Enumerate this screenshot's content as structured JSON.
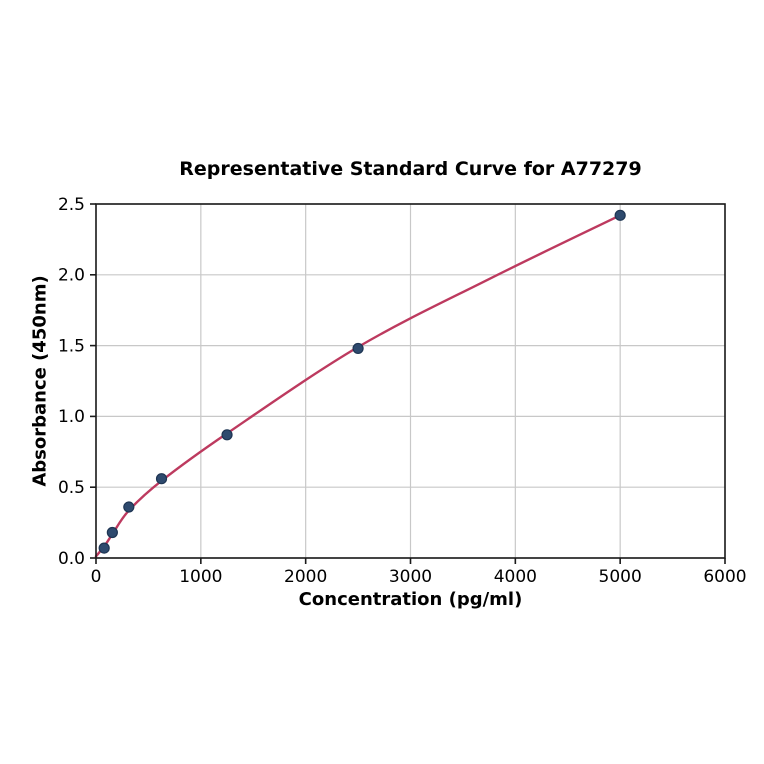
{
  "figure": {
    "background": "#ffffff"
  },
  "chart_data": {
    "type": "scatter",
    "title": "Representative Standard Curve for A77279",
    "xlabel": "Concentration (pg/ml)",
    "ylabel": "Absorbance (450nm)",
    "xlim": [
      0,
      6000
    ],
    "ylim": [
      0,
      2.5
    ],
    "grid": true,
    "legend_position": "none",
    "x_ticks": [
      {
        "value": 0,
        "label": "0"
      },
      {
        "value": 1000,
        "label": "1000"
      },
      {
        "value": 2000,
        "label": "2000"
      },
      {
        "value": 3000,
        "label": "3000"
      },
      {
        "value": 4000,
        "label": "4000"
      },
      {
        "value": 5000,
        "label": "5000"
      },
      {
        "value": 6000,
        "label": "6000"
      }
    ],
    "y_ticks": [
      {
        "value": 0.0,
        "label": "0.0"
      },
      {
        "value": 0.5,
        "label": "0.5"
      },
      {
        "value": 1.0,
        "label": "1.0"
      },
      {
        "value": 1.5,
        "label": "1.5"
      },
      {
        "value": 2.0,
        "label": "2.0"
      },
      {
        "value": 2.5,
        "label": "2.5"
      }
    ],
    "series": [
      {
        "name": "standard-points",
        "type": "scatter",
        "points": [
          {
            "x": 78,
            "y": 0.07
          },
          {
            "x": 156,
            "y": 0.18
          },
          {
            "x": 313,
            "y": 0.36
          },
          {
            "x": 625,
            "y": 0.56
          },
          {
            "x": 1250,
            "y": 0.87
          },
          {
            "x": 2500,
            "y": 1.48
          },
          {
            "x": 5000,
            "y": 2.42
          }
        ],
        "marker_radius": 5,
        "marker_fill": "#2e4a6e",
        "marker_edge": "#1e3553"
      },
      {
        "name": "fit-curve",
        "type": "line",
        "points": [
          {
            "x": 0,
            "y": 0.012
          },
          {
            "x": 78,
            "y": 0.082
          },
          {
            "x": 156,
            "y": 0.168
          },
          {
            "x": 313,
            "y": 0.335
          },
          {
            "x": 625,
            "y": 0.545
          },
          {
            "x": 1250,
            "y": 0.88
          },
          {
            "x": 2500,
            "y": 1.49
          },
          {
            "x": 3750,
            "y": 1.97
          },
          {
            "x": 5000,
            "y": 2.42
          }
        ],
        "line_color": "#bd3a5f",
        "line_width": 2.4
      }
    ],
    "colors": {
      "grid": "#c8c8c8",
      "spine": "#1a1a1a",
      "tick": "#1a1a1a",
      "tick_label": "#000000",
      "background": "#ffffff"
    }
  }
}
